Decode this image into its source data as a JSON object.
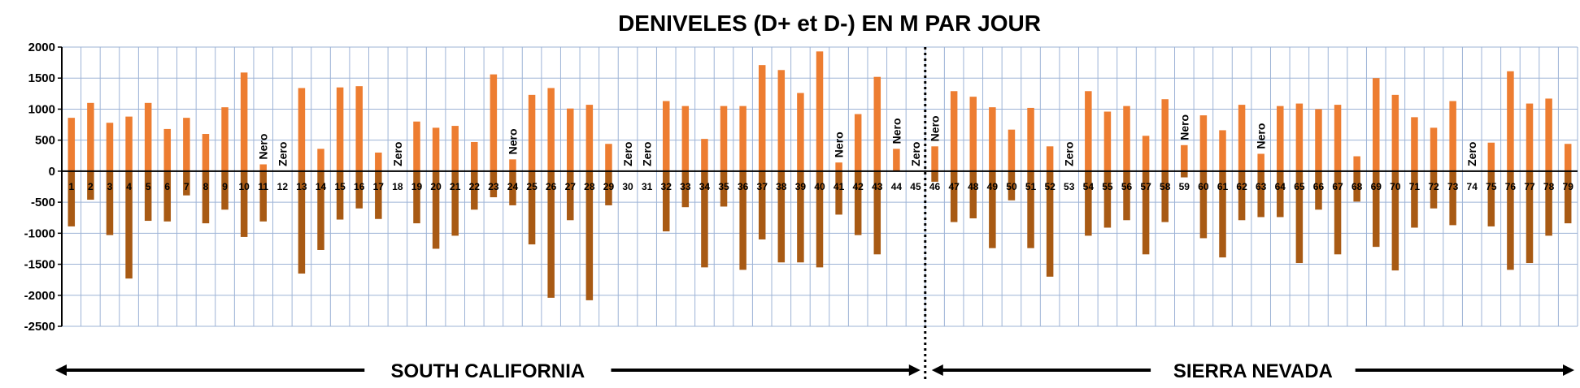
{
  "chart_data": {
    "type": "bar",
    "title": "DENIVELES (D+ et D-) EN M PAR JOUR",
    "xlabel": "",
    "ylabel": "",
    "ylim": [
      -2500,
      2000
    ],
    "yticks": [
      2000,
      1500,
      1000,
      500,
      0,
      -500,
      -1000,
      -1500,
      -2000,
      -2500
    ],
    "grid": true,
    "categories": [
      "1",
      "2",
      "3",
      "4",
      "5",
      "6",
      "7",
      "8",
      "9",
      "10",
      "11",
      "12",
      "13",
      "14",
      "15",
      "16",
      "17",
      "18",
      "19",
      "20",
      "21",
      "22",
      "23",
      "24",
      "25",
      "26",
      "27",
      "28",
      "29",
      "30",
      "31",
      "32",
      "33",
      "34",
      "35",
      "36",
      "37",
      "38",
      "39",
      "40",
      "41",
      "42",
      "43",
      "44",
      "45",
      "46",
      "47",
      "48",
      "49",
      "50",
      "51",
      "52",
      "53",
      "54",
      "55",
      "56",
      "57",
      "58",
      "59",
      "60",
      "61",
      "62",
      "63",
      "64",
      "65",
      "66",
      "67",
      "68",
      "69",
      "70",
      "71",
      "72",
      "73",
      "74",
      "75",
      "76",
      "77",
      "78",
      "79"
    ],
    "series": [
      {
        "values": [
          860,
          1100,
          780,
          880,
          1100,
          680,
          860,
          600,
          1030,
          1590,
          110,
          0,
          1340,
          360,
          1350,
          1370,
          300,
          0,
          800,
          700,
          730,
          470,
          1560,
          190,
          1230,
          1340,
          1010,
          1070,
          440,
          0,
          0,
          1130,
          1050,
          520,
          1050,
          1050,
          1710,
          1630,
          1260,
          1930,
          140,
          920,
          1520,
          360,
          0,
          400,
          1290,
          1200,
          1030,
          670,
          1020,
          400,
          0,
          1290,
          960,
          1050,
          570,
          1160,
          420,
          900,
          660,
          1070,
          280,
          1050,
          1090,
          1000,
          1070,
          240,
          1500,
          1230,
          870,
          700,
          1130,
          0,
          460,
          1610,
          1090,
          1170,
          440
        ],
        "color": "#ED7D31"
      },
      {
        "values": [
          -890,
          -460,
          -1030,
          -1730,
          -800,
          -810,
          -390,
          -840,
          -620,
          -1060,
          -810,
          0,
          -1650,
          -1270,
          -780,
          -600,
          -770,
          0,
          -840,
          -1250,
          -1040,
          -620,
          -420,
          -550,
          -1180,
          -2040,
          -790,
          -2080,
          -550,
          0,
          0,
          -970,
          -580,
          -1550,
          -570,
          -1590,
          -1100,
          -1470,
          -1470,
          -1550,
          -700,
          -1030,
          -1340,
          0,
          0,
          -170,
          -820,
          -760,
          -1240,
          -470,
          -1240,
          -1700,
          0,
          -1040,
          -910,
          -790,
          -1340,
          -820,
          -100,
          -1080,
          -1390,
          -790,
          -740,
          -740,
          -1480,
          -620,
          -1340,
          -490,
          -1220,
          -1600,
          -910,
          -600,
          -870,
          0,
          -890,
          -1590,
          -1480,
          -1040,
          -840
        ],
        "color": "#A85A14"
      }
    ],
    "annotations": [
      {
        "day": 11,
        "text": "Nero"
      },
      {
        "day": 12,
        "text": "Zero"
      },
      {
        "day": 18,
        "text": "Zero"
      },
      {
        "day": 24,
        "text": "Nero"
      },
      {
        "day": 30,
        "text": "Zero"
      },
      {
        "day": 31,
        "text": "Zero"
      },
      {
        "day": 41,
        "text": "Nero"
      },
      {
        "day": 44,
        "text": "Nero"
      },
      {
        "day": 45,
        "text": "Zero"
      },
      {
        "day": 46,
        "text": "Nero"
      },
      {
        "day": 53,
        "text": "Zero"
      },
      {
        "day": 59,
        "text": "Nero"
      },
      {
        "day": 63,
        "text": "Nero"
      },
      {
        "day": 74,
        "text": "Zero"
      }
    ],
    "regions": [
      {
        "label": "SOUTH CALIFORNIA",
        "from_day": 1,
        "to_day": 45
      },
      {
        "label": "SIERRA NEVADA",
        "from_day": 46,
        "to_day": 79
      }
    ]
  }
}
